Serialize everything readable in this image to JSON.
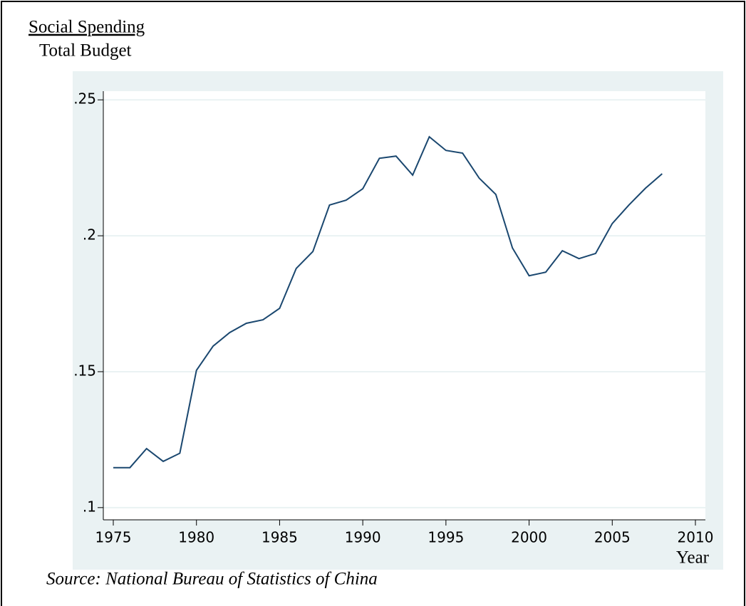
{
  "chart_data": {
    "type": "line",
    "title": "Social Spending",
    "subtitle": "Total Budget",
    "xlabel": "Year",
    "note": "Source: National Bureau of Statistics of China",
    "x": [
      1975,
      1976,
      1977,
      1978,
      1979,
      1980,
      1981,
      1982,
      1983,
      1984,
      1985,
      1986,
      1987,
      1988,
      1989,
      1990,
      1991,
      1992,
      1993,
      1994,
      1995,
      1996,
      1997,
      1998,
      1999,
      2000,
      2001,
      2002,
      2003,
      2004,
      2005,
      2006,
      2007,
      2008
    ],
    "series": [
      {
        "name": "Social Spending / Total Budget",
        "color": "#1a476f",
        "values": [
          0.1147,
          0.1147,
          0.1217,
          0.117,
          0.12,
          0.1505,
          0.1594,
          0.1644,
          0.1678,
          0.1691,
          0.1733,
          0.188,
          0.1942,
          0.2113,
          0.2131,
          0.2173,
          0.2285,
          0.2293,
          0.2223,
          0.2364,
          0.2314,
          0.2304,
          0.2212,
          0.2152,
          0.1955,
          0.1853,
          0.1866,
          0.1945,
          0.1916,
          0.1935,
          0.2045,
          0.2113,
          0.2175,
          0.2228
        ]
      }
    ],
    "xlim": [
      1974.4,
      2010.6
    ],
    "xticks": [
      1975,
      1980,
      1985,
      1990,
      1995,
      2000,
      2005,
      2010
    ],
    "ylim": [
      0.0955,
      0.2532
    ],
    "yticks": [
      {
        "value": 0.1,
        "label": ".1"
      },
      {
        "value": 0.15,
        "label": ".15"
      },
      {
        "value": 0.2,
        "label": ".2"
      },
      {
        "value": 0.25,
        "label": ".25"
      }
    ],
    "grid": true
  }
}
